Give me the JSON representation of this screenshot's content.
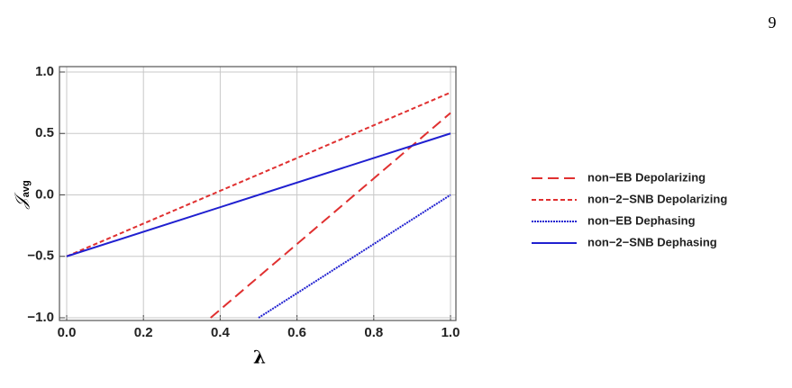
{
  "page_number": "9",
  "chart_data": {
    "type": "line",
    "xlabel": "λ",
    "ylabel": {
      "symbol": "𝒥",
      "subscript": "avg"
    },
    "xlim": [
      0,
      1
    ],
    "ylim": [
      -1,
      1
    ],
    "xticks": [
      {
        "value": 0,
        "label": "0.0"
      },
      {
        "value": 0.2,
        "label": "0.2"
      },
      {
        "value": 0.4,
        "label": "0.4"
      },
      {
        "value": 0.6,
        "label": "0.6"
      },
      {
        "value": 0.8,
        "label": "0.8"
      },
      {
        "value": 1,
        "label": "1.0"
      }
    ],
    "yticks": [
      {
        "value": -1,
        "label": "−1.0"
      },
      {
        "value": -0.5,
        "label": "−0.5"
      },
      {
        "value": 0,
        "label": "0.0"
      },
      {
        "value": 0.5,
        "label": "0.5"
      },
      {
        "value": 1,
        "label": "1.0"
      }
    ],
    "grid": true,
    "legend": "right",
    "series": [
      {
        "name": "non−EB Depolarizing",
        "color": "#e03030",
        "dash": "long",
        "x": [
          0.375,
          1
        ],
        "values": [
          -1,
          0.667
        ]
      },
      {
        "name": "non−2−SNB Depolarizing",
        "color": "#e03030",
        "dash": "short",
        "x": [
          0,
          1
        ],
        "values": [
          -0.5,
          0.833
        ]
      },
      {
        "name": "non−EB Dephasing",
        "color": "#2020d0",
        "dash": "dotted",
        "x": [
          0.5,
          1
        ],
        "values": [
          -1,
          0
        ]
      },
      {
        "name": "non−2−SNB Dephasing",
        "color": "#2020d0",
        "dash": "solid",
        "x": [
          0,
          1
        ],
        "values": [
          -0.5,
          0.5
        ]
      }
    ]
  }
}
